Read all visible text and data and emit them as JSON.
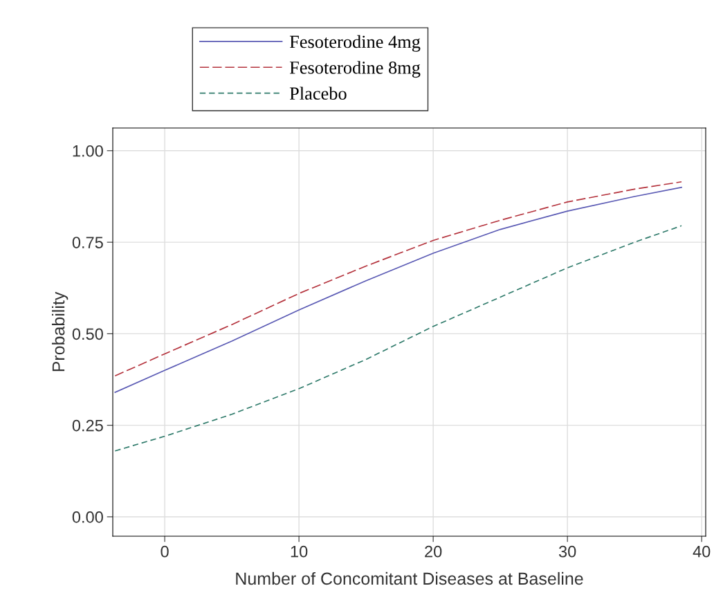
{
  "chart_data": {
    "type": "line",
    "xlabel": "Number of Concomitant Diseases at Baseline",
    "ylabel": "Probability",
    "x": [
      -3.7,
      0,
      5,
      10,
      15,
      20,
      25,
      30,
      35,
      38.5
    ],
    "series": [
      {
        "name": "Fesoterodine 4mg",
        "color": "#5a5ab4",
        "line_style": "solid",
        "values": [
          0.34,
          0.4,
          0.48,
          0.565,
          0.645,
          0.72,
          0.785,
          0.835,
          0.875,
          0.9
        ]
      },
      {
        "name": "Fesoterodine 8mg",
        "color": "#b4323c",
        "line_style": "dashed",
        "values": [
          0.385,
          0.445,
          0.525,
          0.61,
          0.685,
          0.755,
          0.81,
          0.86,
          0.895,
          0.915
        ]
      },
      {
        "name": "Placebo",
        "color": "#2e7a6a",
        "line_style": "dashed",
        "values": [
          0.18,
          0.22,
          0.28,
          0.35,
          0.43,
          0.52,
          0.6,
          0.68,
          0.75,
          0.795
        ]
      }
    ],
    "xlim": [
      -3.87,
      40.3
    ],
    "xticks": [
      0,
      10,
      20,
      30,
      40
    ],
    "ylim": [
      -0.053,
      1.062
    ],
    "yticks": [
      {
        "value": 0,
        "label": "0.00"
      },
      {
        "value": 0.25,
        "label": "0.25"
      },
      {
        "value": 0.5,
        "label": "0.50"
      },
      {
        "value": 0.75,
        "label": "0.75"
      },
      {
        "value": 1,
        "label": "1.00"
      }
    ],
    "grid": true,
    "legend": "top",
    "marker": "none"
  }
}
